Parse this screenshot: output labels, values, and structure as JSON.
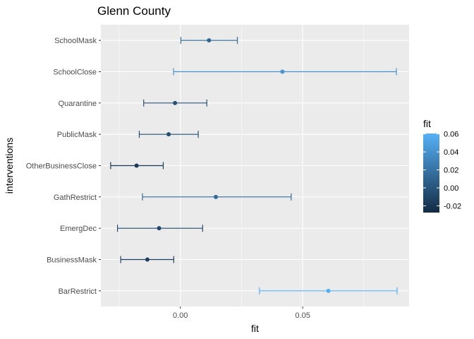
{
  "chart_data": {
    "type": "scatter",
    "title": "Glenn County",
    "xlabel": "fit",
    "ylabel": "interventions",
    "xlim": [
      -0.0325,
      0.0935
    ],
    "x_ticks": [
      0.0,
      0.05
    ],
    "x_tick_labels": [
      "0.00",
      "0.05"
    ],
    "grid": true,
    "categories": [
      "SchoolMask",
      "SchoolClose",
      "Quarantine",
      "PublicMask",
      "OtherBusinessClose",
      "GathRestrict",
      "EmergDec",
      "BusinessMask",
      "BarRestrict"
    ],
    "series": [
      {
        "values": [
          0.0117,
          0.0417,
          -0.0022,
          -0.0048,
          -0.0179,
          0.0145,
          -0.0087,
          -0.0135,
          0.0605
        ],
        "lower": [
          0.0002,
          -0.0028,
          -0.015,
          -0.0168,
          -0.0285,
          -0.0155,
          -0.0257,
          -0.0244,
          0.0323
        ],
        "upper": [
          0.0233,
          0.0883,
          0.0108,
          0.0073,
          -0.007,
          0.0453,
          0.0091,
          -0.0027,
          0.0886
        ]
      }
    ],
    "legend": {
      "title": "fit",
      "position": "right",
      "min": -0.0275,
      "max": 0.0605,
      "ticks": [
        0.06,
        0.04,
        0.02,
        0.0,
        -0.02
      ],
      "tick_labels": [
        "0.06",
        "0.04",
        "0.02",
        "0.00",
        "-0.02"
      ]
    },
    "colors": {
      "low": "#132B43",
      "high": "#56B1F7",
      "panel": "#EBEBEB",
      "grid_major": "#FFFFFF"
    }
  }
}
